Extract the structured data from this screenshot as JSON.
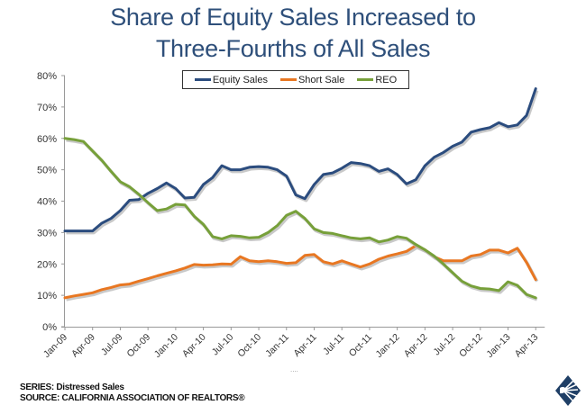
{
  "chart_data": {
    "type": "line",
    "title": "Share of Equity Sales Increased to Three-Fourths of All Sales",
    "title_lines": [
      "Share of Equity Sales Increased to",
      "Three-Fourths of All Sales"
    ],
    "xlabel": "",
    "ylabel": "",
    "ylim": [
      0,
      80
    ],
    "y_ticks": [
      "0%",
      "10%",
      "20%",
      "30%",
      "40%",
      "50%",
      "60%",
      "70%",
      "80%"
    ],
    "x_tick_labels": [
      "Jan-09",
      "Apr-09",
      "Jul-09",
      "Oct-09",
      "Jan-10",
      "Apr-10",
      "Jul-10",
      "Oct-10",
      "Jan-11",
      "Apr-11",
      "Jul-11",
      "Oct-11",
      "Jan-12",
      "Apr-12",
      "Jul-12",
      "Oct-12",
      "Jan-13",
      "Apr-13"
    ],
    "x_start": "Jan-09",
    "x_end": "Apr-13",
    "x_frequency": "monthly",
    "grid": false,
    "legend": "top-center",
    "series": [
      {
        "name": "Equity Sales",
        "color": "#2b4c7e",
        "values": [
          30.5,
          30.5,
          30.5,
          30.5,
          33,
          34.5,
          37,
          40.3,
          40.5,
          42.5,
          44,
          45.8,
          44,
          41,
          41.2,
          45.3,
          47.5,
          51.3,
          50,
          50,
          50.8,
          51,
          50.8,
          50,
          48,
          42,
          40.8,
          45.3,
          48.5,
          49,
          50.5,
          52.3,
          52,
          51.3,
          49.5,
          50.3,
          48.5,
          45.5,
          46.8,
          51.3,
          54,
          55.5,
          57.5,
          58.8,
          62,
          62.8,
          63.4,
          65,
          63.7,
          64.3,
          67.3,
          75.8
        ]
      },
      {
        "name": "Short Sale",
        "color": "#e87722",
        "values": [
          9.2,
          9.8,
          10.3,
          10.8,
          11.8,
          12.5,
          13.3,
          13.6,
          14.5,
          15.3,
          16.2,
          17,
          17.8,
          18.7,
          19.8,
          19.6,
          19.7,
          20,
          19.9,
          22.3,
          21,
          20.7,
          21,
          20.7,
          20.2,
          20.4,
          22.7,
          23,
          20.7,
          20,
          21,
          20,
          19,
          20,
          21.5,
          22.5,
          23.2,
          24,
          25.8,
          24.5,
          22.3,
          21,
          21,
          21,
          22.5,
          23,
          24.4,
          24.4,
          23.5,
          25,
          20.5,
          15
        ]
      },
      {
        "name": "REO",
        "color": "#77a03a",
        "values": [
          60,
          59.6,
          59,
          56,
          53,
          49.5,
          46.2,
          44.6,
          42.2,
          39.5,
          37,
          37.5,
          39,
          38.8,
          35.2,
          32.6,
          28.7,
          28,
          29,
          28.8,
          28.3,
          28.5,
          30,
          32.2,
          35.5,
          36.8,
          34.5,
          31.2,
          30,
          29.7,
          29,
          28.3,
          28,
          28.3,
          27,
          27.6,
          28.7,
          28.2,
          26.2,
          24.5,
          22.5,
          20,
          17.2,
          14.5,
          13,
          12.2,
          12,
          11.5,
          14.3,
          13.2,
          10.3,
          9.2
        ]
      }
    ]
  },
  "footer": {
    "series_line": "SERIES: Distressed Sales",
    "source_line": "SOURCE:  CALIFORNIA ASSOCIATION OF REALTORS®"
  },
  "logo": {
    "icon": "car-diamond-logo-icon",
    "color": "#1f3f66"
  }
}
